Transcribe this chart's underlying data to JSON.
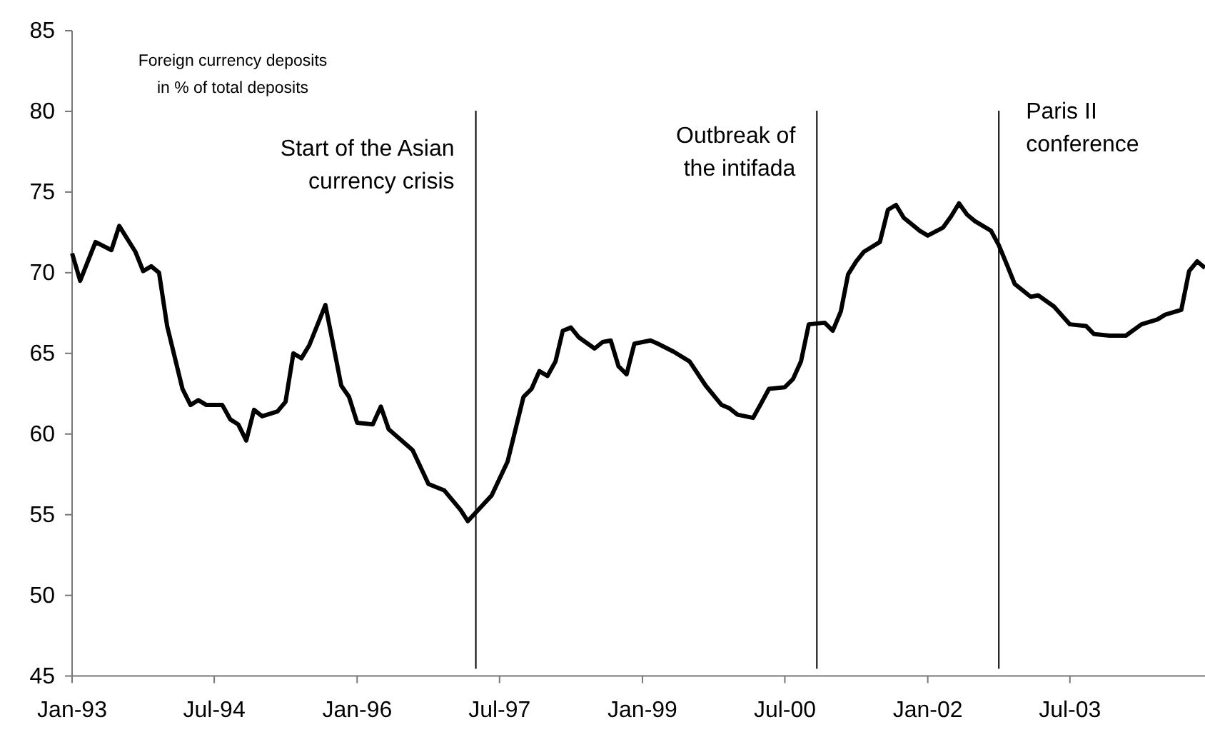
{
  "chart_data": {
    "type": "line",
    "ylabel": "Foreign currency deposits\nin % of total deposits",
    "x": [
      "1993-01",
      "1993-02",
      "1993-04",
      "1993-06",
      "1993-07",
      "1993-09",
      "1993-10",
      "1993-11",
      "1993-12",
      "1994-01",
      "1994-03",
      "1994-04",
      "1994-05",
      "1994-06",
      "1994-08",
      "1994-09",
      "1994-10",
      "1994-11",
      "1994-12",
      "1995-01",
      "1995-03",
      "1995-04",
      "1995-05",
      "1995-06",
      "1995-07",
      "1995-09",
      "1995-11",
      "1995-12",
      "1996-01",
      "1996-03",
      "1996-04",
      "1996-05",
      "1996-08",
      "1996-10",
      "1996-12",
      "1997-02",
      "1997-03",
      "1997-06",
      "1997-08",
      "1997-10",
      "1997-11",
      "1997-12",
      "1998-01",
      "1998-02",
      "1998-03",
      "1998-04",
      "1998-05",
      "1998-07",
      "1998-08",
      "1998-09",
      "1998-10",
      "1998-11",
      "1998-12",
      "1999-02",
      "1999-03",
      "1999-05",
      "1999-07",
      "1999-09",
      "1999-11",
      "1999-12",
      "2000-01",
      "2000-03",
      "2000-04",
      "2000-05",
      "2000-07",
      "2000-08",
      "2000-09",
      "2000-10",
      "2000-12",
      "2001-01",
      "2001-02",
      "2001-03",
      "2001-04",
      "2001-05",
      "2001-07",
      "2001-08",
      "2001-09",
      "2001-10",
      "2001-12",
      "2002-01",
      "2002-03",
      "2002-04",
      "2002-05",
      "2002-06",
      "2002-07",
      "2002-09",
      "2002-10",
      "2002-11",
      "2002-12",
      "2003-02",
      "2003-03",
      "2003-05",
      "2003-07",
      "2003-09",
      "2003-10",
      "2003-12",
      "2004-02",
      "2004-04",
      "2004-06",
      "2004-07",
      "2004-09",
      "2004-10",
      "2004-11",
      "2004-12"
    ],
    "series": [
      {
        "color": "#000000",
        "values": [
          71.2,
          69.5,
          71.9,
          71.4,
          72.9,
          71.3,
          70.1,
          70.4,
          70.0,
          66.7,
          62.8,
          61.8,
          62.1,
          61.8,
          61.8,
          60.9,
          60.6,
          59.6,
          61.5,
          61.1,
          61.4,
          62.0,
          65.0,
          64.7,
          65.5,
          68.0,
          63.0,
          62.3,
          60.7,
          60.6,
          61.7,
          60.3,
          59.0,
          56.9,
          56.5,
          55.3,
          54.6,
          56.2,
          58.3,
          62.3,
          62.8,
          63.9,
          63.6,
          64.5,
          66.4,
          66.6,
          66.0,
          65.3,
          65.7,
          65.8,
          64.2,
          63.7,
          65.6,
          65.8,
          65.6,
          65.1,
          64.5,
          63.0,
          61.8,
          61.6,
          61.2,
          61.0,
          61.9,
          62.8,
          62.9,
          63.4,
          64.5,
          66.8,
          66.9,
          66.4,
          67.6,
          69.9,
          70.7,
          71.3,
          71.9,
          73.9,
          74.2,
          73.4,
          72.6,
          72.3,
          72.8,
          73.5,
          74.3,
          73.6,
          73.2,
          72.6,
          71.7,
          70.5,
          69.3,
          68.5,
          68.6,
          67.9,
          66.8,
          66.7,
          66.2,
          66.1,
          66.1,
          66.8,
          67.1,
          67.4,
          67.7,
          70.1,
          70.7,
          70.3
        ]
      }
    ],
    "xlim": [
      "1993-01",
      "2004-12"
    ],
    "xticks": [
      {
        "value": "1993-01",
        "label": "Jan-93"
      },
      {
        "value": "1994-07",
        "label": "Jul-94"
      },
      {
        "value": "1996-01",
        "label": "Jan-96"
      },
      {
        "value": "1997-07",
        "label": "Jul-97"
      },
      {
        "value": "1999-01",
        "label": "Jan-99"
      },
      {
        "value": "2000-07",
        "label": "Jul-00"
      },
      {
        "value": "2002-01",
        "label": "Jan-02"
      },
      {
        "value": "2003-07",
        "label": "Jul-03"
      }
    ],
    "ylim": [
      45,
      85
    ],
    "yticks": [
      45,
      50,
      55,
      60,
      65,
      70,
      75,
      80,
      85
    ],
    "ref_lines": [
      {
        "axis": "x",
        "value": "1997-04",
        "label": "Start of the Asian\ncurrency crisis"
      },
      {
        "axis": "x",
        "value": "2000-11",
        "label": "Outbreak of\nthe intifada"
      },
      {
        "axis": "x",
        "value": "2002-10",
        "label": "Paris II\nconference"
      }
    ],
    "marker": "none",
    "line_style": "solid"
  }
}
